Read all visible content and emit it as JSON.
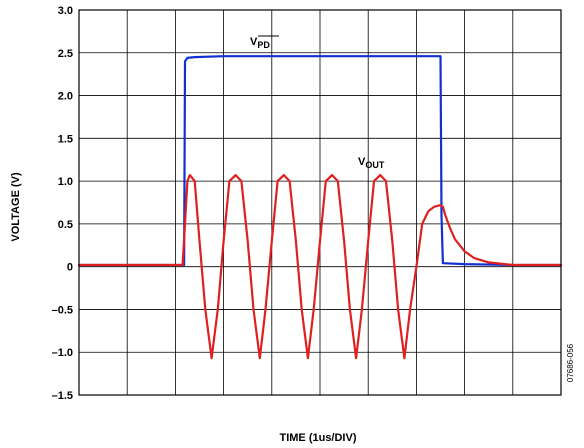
{
  "chart_data": {
    "type": "line",
    "xlabel": "TIME (1us/DIV)",
    "ylabel": "VOLTAGE (V)",
    "ylim": [
      -1.5,
      3.0
    ],
    "xlim": [
      0,
      10
    ],
    "x_divisions": 10,
    "y_ticks": [
      "3.0",
      "2.5",
      "2.0",
      "1.5",
      "1.0",
      "0.5",
      "0",
      "–0.5",
      "–1.0",
      "–1.5"
    ],
    "y_tick_values": [
      3.0,
      2.5,
      2.0,
      1.5,
      1.0,
      0.5,
      0,
      -0.5,
      -1.0,
      -1.5
    ],
    "grid": true,
    "series": [
      {
        "name_main": "V",
        "name_sub": "PD",
        "sub_overline": true,
        "color": "#1030d0",
        "x": [
          0,
          2.18,
          2.2,
          2.25,
          2.4,
          3,
          4,
          5,
          6,
          7,
          7.5,
          7.52,
          7.55,
          8,
          9,
          10
        ],
        "y": [
          0.02,
          0.02,
          2.4,
          2.44,
          2.45,
          2.46,
          2.46,
          2.46,
          2.46,
          2.46,
          2.46,
          0.6,
          0.04,
          0.03,
          0.02,
          0.02
        ]
      },
      {
        "name_main": "V",
        "name_sub": "OUT",
        "sub_overline": false,
        "color": "#e02020",
        "x": [
          0,
          2.15,
          2.2,
          2.25,
          2.3,
          2.4,
          2.5,
          2.62,
          2.75,
          2.88,
          3.0,
          3.12,
          3.25,
          3.37,
          3.5,
          3.62,
          3.75,
          3.87,
          4.0,
          4.12,
          4.25,
          4.37,
          4.5,
          4.62,
          4.75,
          4.87,
          5.0,
          5.12,
          5.25,
          5.37,
          5.5,
          5.62,
          5.75,
          5.87,
          6.0,
          6.12,
          6.25,
          6.37,
          6.5,
          6.62,
          6.75,
          6.87,
          7.0,
          7.12,
          7.25,
          7.37,
          7.5,
          7.55,
          7.6,
          7.7,
          7.8,
          8.0,
          8.2,
          8.5,
          9,
          10
        ],
        "y": [
          0.02,
          0.02,
          0.5,
          1.0,
          1.07,
          1.0,
          0.3,
          -0.5,
          -1.07,
          -0.5,
          0.3,
          1.0,
          1.07,
          1.0,
          0.3,
          -0.5,
          -1.07,
          -0.5,
          0.3,
          1.0,
          1.07,
          1.0,
          0.3,
          -0.5,
          -1.07,
          -0.5,
          0.3,
          1.0,
          1.07,
          1.0,
          0.3,
          -0.5,
          -1.07,
          -0.5,
          0.3,
          1.0,
          1.07,
          1.0,
          0.3,
          -0.5,
          -1.07,
          -0.5,
          0.0,
          0.5,
          0.65,
          0.7,
          0.72,
          0.7,
          0.6,
          0.45,
          0.32,
          0.18,
          0.1,
          0.05,
          0.02,
          0.02
        ]
      }
    ],
    "figure_code": "07686-056"
  }
}
